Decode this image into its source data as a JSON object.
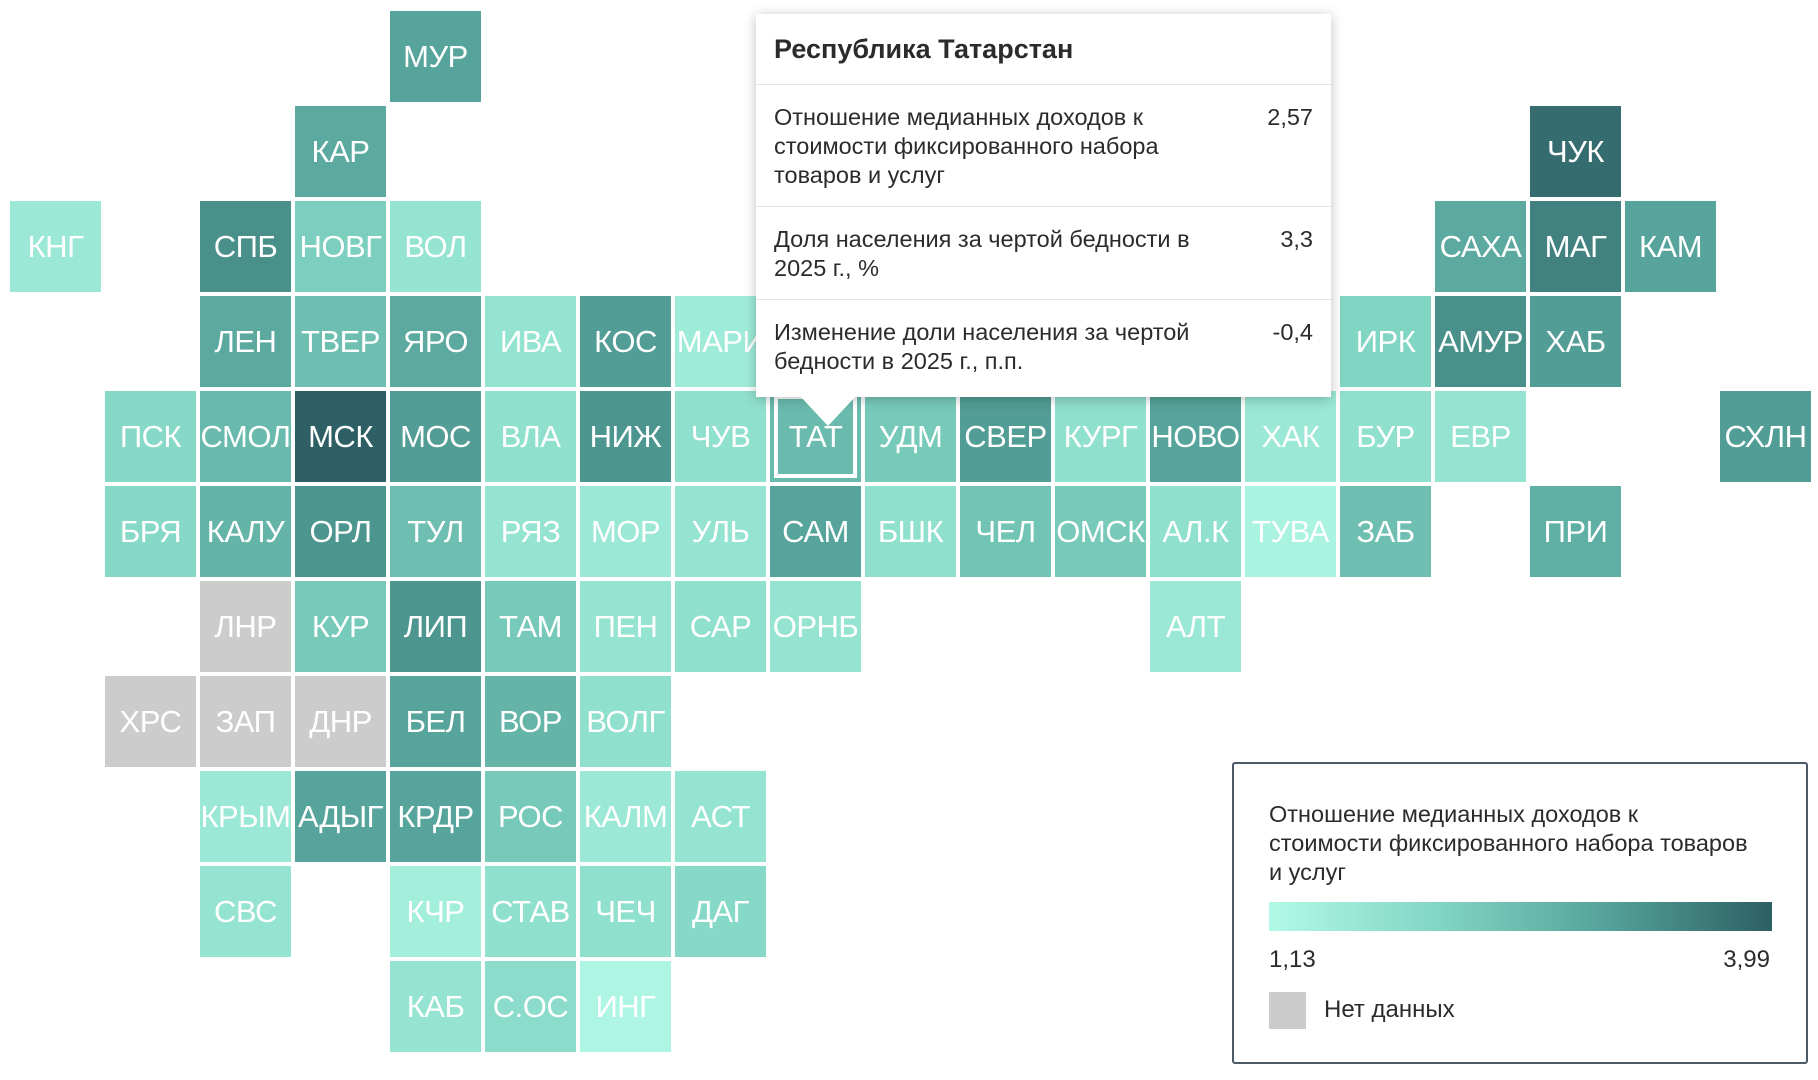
{
  "colors": {
    "low": "#b2f9e6",
    "high": "#2d5f64",
    "no_data": "#cccccc"
  },
  "map": {
    "active_region": "ТАТ",
    "regions": [
      {
        "code": "МУР",
        "col": 4,
        "row": 0,
        "value": 3.0
      },
      {
        "code": "КАР",
        "col": 3,
        "row": 1,
        "value": 2.9
      },
      {
        "code": "ЧУК",
        "col": 16,
        "row": 1,
        "value": 3.8
      },
      {
        "code": "КНГ",
        "col": 0,
        "row": 2,
        "value": 1.6
      },
      {
        "code": "СПБ",
        "col": 2,
        "row": 2,
        "value": 3.3
      },
      {
        "code": "НОВГ",
        "col": 3,
        "row": 2,
        "value": 2.2
      },
      {
        "code": "ВОЛ",
        "col": 4,
        "row": 2,
        "value": 1.7
      },
      {
        "code": "САХА",
        "col": 15,
        "row": 2,
        "value": 2.9
      },
      {
        "code": "МАГ",
        "col": 16,
        "row": 2,
        "value": 3.5
      },
      {
        "code": "КАМ",
        "col": 17,
        "row": 2,
        "value": 3.0
      },
      {
        "code": "ЛЕН",
        "col": 2,
        "row": 3,
        "value": 2.9
      },
      {
        "code": "ТВЕР",
        "col": 3,
        "row": 3,
        "value": 2.5
      },
      {
        "code": "ЯРО",
        "col": 4,
        "row": 3,
        "value": 2.9
      },
      {
        "code": "ИВА",
        "col": 5,
        "row": 3,
        "value": 1.7
      },
      {
        "code": "КОС",
        "col": 6,
        "row": 3,
        "value": 3.1
      },
      {
        "code": "МАРИ",
        "col": 7,
        "row": 3,
        "value": 1.5
      },
      {
        "code": "ИРК",
        "col": 14,
        "row": 3,
        "value": 2.1
      },
      {
        "code": "АМУР",
        "col": 15,
        "row": 3,
        "value": 3.3
      },
      {
        "code": "ХАБ",
        "col": 16,
        "row": 3,
        "value": 3.1
      },
      {
        "code": "ПСК",
        "col": 1,
        "row": 4,
        "value": 2.0
      },
      {
        "code": "СМОЛ",
        "col": 2,
        "row": 4,
        "value": 2.6
      },
      {
        "code": "МСК",
        "col": 3,
        "row": 4,
        "value": 3.99
      },
      {
        "code": "МОС",
        "col": 4,
        "row": 4,
        "value": 3.1
      },
      {
        "code": "ВЛА",
        "col": 5,
        "row": 4,
        "value": 1.8
      },
      {
        "code": "НИЖ",
        "col": 6,
        "row": 4,
        "value": 3.2
      },
      {
        "code": "ЧУВ",
        "col": 7,
        "row": 4,
        "value": 1.8
      },
      {
        "code": "ТАТ",
        "col": 8,
        "row": 4,
        "value": 2.57
      },
      {
        "code": "УДМ",
        "col": 9,
        "row": 4,
        "value": 2.3
      },
      {
        "code": "СВЕР",
        "col": 10,
        "row": 4,
        "value": 3.1
      },
      {
        "code": "КУРГ",
        "col": 11,
        "row": 4,
        "value": 1.8
      },
      {
        "code": "НОВО",
        "col": 12,
        "row": 4,
        "value": 3.0
      },
      {
        "code": "ХАК",
        "col": 13,
        "row": 4,
        "value": 1.6
      },
      {
        "code": "БУР",
        "col": 14,
        "row": 4,
        "value": 1.8
      },
      {
        "code": "ЕВР",
        "col": 15,
        "row": 4,
        "value": 1.7
      },
      {
        "code": "СХЛН",
        "col": 18,
        "row": 4,
        "value": 3.1
      },
      {
        "code": "БРЯ",
        "col": 1,
        "row": 5,
        "value": 2.0
      },
      {
        "code": "КАЛУ",
        "col": 2,
        "row": 5,
        "value": 2.7
      },
      {
        "code": "ОРЛ",
        "col": 3,
        "row": 5,
        "value": 3.2
      },
      {
        "code": "ТУЛ",
        "col": 4,
        "row": 5,
        "value": 2.5
      },
      {
        "code": "РЯЗ",
        "col": 5,
        "row": 5,
        "value": 1.7
      },
      {
        "code": "МОР",
        "col": 6,
        "row": 5,
        "value": 1.6
      },
      {
        "code": "УЛЬ",
        "col": 7,
        "row": 5,
        "value": 1.7
      },
      {
        "code": "САМ",
        "col": 8,
        "row": 5,
        "value": 3.0
      },
      {
        "code": "БШК",
        "col": 9,
        "row": 5,
        "value": 1.8
      },
      {
        "code": "ЧЕЛ",
        "col": 10,
        "row": 5,
        "value": 2.4
      },
      {
        "code": "ОМСК",
        "col": 11,
        "row": 5,
        "value": 2.3
      },
      {
        "code": "АЛ.К",
        "col": 12,
        "row": 5,
        "value": 1.8
      },
      {
        "code": "ТУВА",
        "col": 13,
        "row": 5,
        "value": 1.3
      },
      {
        "code": "ЗАБ",
        "col": 14,
        "row": 5,
        "value": 2.5
      },
      {
        "code": "ПРИ",
        "col": 16,
        "row": 5,
        "value": 2.8
      },
      {
        "code": "ЛНР",
        "col": 2,
        "row": 6,
        "value": null
      },
      {
        "code": "КУР",
        "col": 3,
        "row": 6,
        "value": 2.3
      },
      {
        "code": "ЛИП",
        "col": 4,
        "row": 6,
        "value": 3.2
      },
      {
        "code": "ТАМ",
        "col": 5,
        "row": 6,
        "value": 2.3
      },
      {
        "code": "ПЕН",
        "col": 6,
        "row": 6,
        "value": 1.7
      },
      {
        "code": "САР",
        "col": 7,
        "row": 6,
        "value": 1.8
      },
      {
        "code": "ОРНБ",
        "col": 8,
        "row": 6,
        "value": 1.7
      },
      {
        "code": "АЛТ",
        "col": 12,
        "row": 6,
        "value": 1.6
      },
      {
        "code": "ХРС",
        "col": 1,
        "row": 7,
        "value": null
      },
      {
        "code": "ЗАП",
        "col": 2,
        "row": 7,
        "value": null
      },
      {
        "code": "ДНР",
        "col": 3,
        "row": 7,
        "value": null
      },
      {
        "code": "БЕЛ",
        "col": 4,
        "row": 7,
        "value": 3.0
      },
      {
        "code": "ВОР",
        "col": 5,
        "row": 7,
        "value": 2.7
      },
      {
        "code": "ВОЛГ",
        "col": 6,
        "row": 7,
        "value": 1.8
      },
      {
        "code": "КРЫМ",
        "col": 2,
        "row": 8,
        "value": 1.6
      },
      {
        "code": "АДЫГ",
        "col": 3,
        "row": 8,
        "value": 3.0
      },
      {
        "code": "КРДР",
        "col": 4,
        "row": 8,
        "value": 3.0
      },
      {
        "code": "РОС",
        "col": 5,
        "row": 8,
        "value": 2.3
      },
      {
        "code": "КАЛМ",
        "col": 6,
        "row": 8,
        "value": 1.6
      },
      {
        "code": "АСТ",
        "col": 7,
        "row": 8,
        "value": 1.7
      },
      {
        "code": "СВС",
        "col": 2,
        "row": 9,
        "value": 1.7
      },
      {
        "code": "КЧР",
        "col": 4,
        "row": 9,
        "value": 1.4
      },
      {
        "code": "СТАВ",
        "col": 5,
        "row": 9,
        "value": 1.8
      },
      {
        "code": "ЧЕЧ",
        "col": 6,
        "row": 9,
        "value": 1.8
      },
      {
        "code": "ДАГ",
        "col": 7,
        "row": 9,
        "value": 2.0
      },
      {
        "code": "КАБ",
        "col": 4,
        "row": 10,
        "value": 1.7
      },
      {
        "code": "С.ОС",
        "col": 5,
        "row": 10,
        "value": 1.9
      },
      {
        "code": "ИНГ",
        "col": 6,
        "row": 10,
        "value": 1.2
      }
    ]
  },
  "tooltip": {
    "title": "Республика Татарстан",
    "rows": [
      {
        "label": "Отношение медианных доходов к стоимости фиксированного набора товаров и услуг",
        "value": "2,57"
      },
      {
        "label": "Доля населения за чертой бедности в 2025 г., %",
        "value": "3,3"
      },
      {
        "label": "Изменение доли населения за чертой бедности в 2025 г., п.п.",
        "value": "-0,4"
      }
    ]
  },
  "legend": {
    "title": "Отношение медианных доходов к стоимости фиксированного набора товаров и услуг",
    "min_label": "1,13",
    "max_label": "3,99",
    "min": 1.13,
    "max": 3.99,
    "no_data_label": "Нет данных"
  }
}
